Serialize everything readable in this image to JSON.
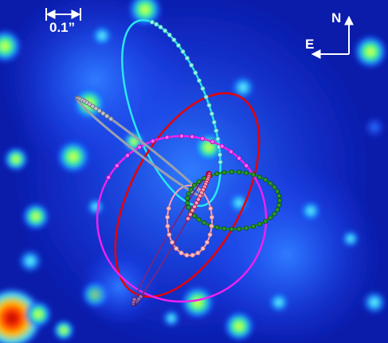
{
  "annotations": {
    "scale_bar_label": "0.1”",
    "north_label": "N",
    "east_label": "E"
  },
  "colors": {
    "background": "#0a1aa6",
    "cyan_orbit": "#29e6f0",
    "red_orbit": "#e80000",
    "magenta_orbit": "#ee22ee",
    "green_orbit": "#1f8f1f",
    "pink_orbit": "#ff9fb0",
    "gray_orbit": "#9aa0b0",
    "arrow": "#ffffff"
  },
  "image_content": {
    "description_icon": "stellar-orbits-around-galactic-center",
    "orbit_count": 6
  }
}
